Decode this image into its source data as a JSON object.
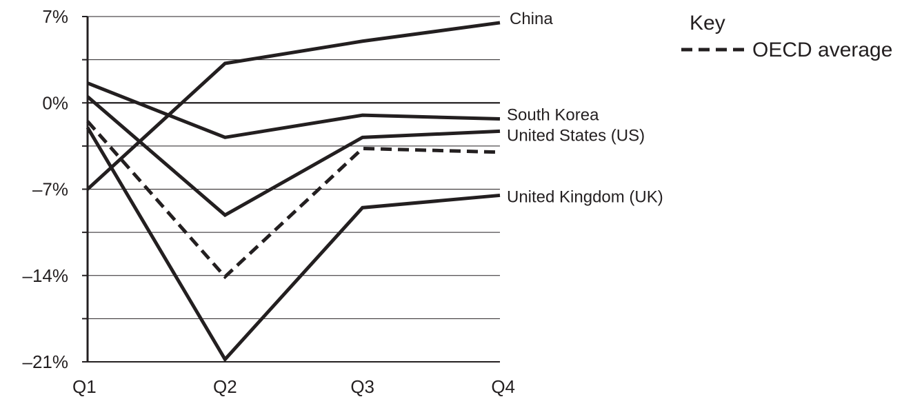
{
  "chart_data": {
    "type": "line",
    "title": "",
    "xlabel": "",
    "ylabel": "",
    "categories": [
      "Q1",
      "Q2",
      "Q3",
      "Q4"
    ],
    "y_ticks": [
      7,
      0,
      -7,
      -14,
      -21
    ],
    "y_tick_labels": [
      "7%",
      "0%",
      "–7%",
      "–14%",
      "–21%"
    ],
    "y_minor_ticks": [
      3.5,
      -3.5,
      -10.5,
      -17.5
    ],
    "ylim": [
      -21,
      7
    ],
    "grid": true,
    "line_color": "#231f20",
    "series": [
      {
        "name": "China",
        "values": [
          -7,
          3.2,
          5,
          6.5
        ],
        "style": "solid"
      },
      {
        "name": "South Korea",
        "values": [
          1.6,
          -2.8,
          -1,
          -1.3
        ],
        "style": "solid"
      },
      {
        "name": "United States (US)",
        "values": [
          0.5,
          -9.1,
          -2.8,
          -2.3
        ],
        "style": "solid"
      },
      {
        "name": "United Kingdom (UK)",
        "values": [
          -2,
          -20.8,
          -8.5,
          -7.5
        ],
        "style": "solid"
      },
      {
        "name": "OECD average",
        "values": [
          -1.5,
          -14.1,
          -3.7,
          -4
        ],
        "style": "dashed"
      }
    ],
    "legend": {
      "title": "Key",
      "position": "top-right",
      "entries": [
        {
          "label": "OECD average",
          "style": "dashed"
        }
      ]
    }
  }
}
